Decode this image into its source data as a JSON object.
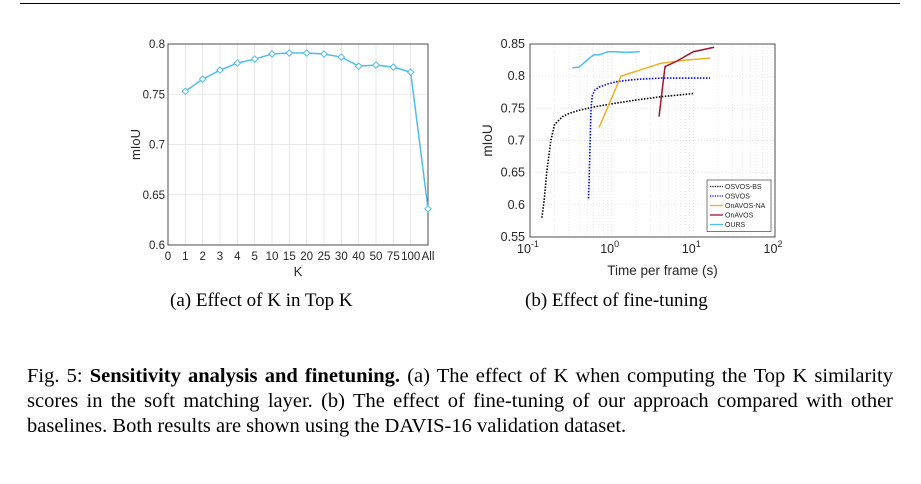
{
  "chart_data": [
    {
      "type": "line",
      "xlabel": "K",
      "ylabel": "mIoU",
      "categories": [
        "0",
        "1",
        "2",
        "3",
        "4",
        "5",
        "10",
        "15",
        "20",
        "25",
        "30",
        "40",
        "50",
        "75",
        "100",
        "All"
      ],
      "yticks": [
        "0.6",
        "0.65",
        "0.7",
        "0.75",
        "0.8"
      ],
      "ylim": [
        0.6,
        0.8
      ],
      "grid": true,
      "series": [
        {
          "color": "#4dbeee",
          "marker": "diamond",
          "values": [
            null,
            0.753,
            0.765,
            0.774,
            0.781,
            0.785,
            0.79,
            0.791,
            0.791,
            0.79,
            0.787,
            0.778,
            0.779,
            0.777,
            0.772,
            0.636
          ]
        }
      ]
    },
    {
      "type": "line",
      "xscale": "log",
      "xlabel": "Time per frame (s)",
      "ylabel": "mIoU",
      "xlim": [
        0.1,
        100
      ],
      "ylim": [
        0.55,
        0.85
      ],
      "xticks": [
        {
          "base": "10",
          "exp": "-1"
        },
        {
          "base": "10",
          "exp": "0"
        },
        {
          "base": "10",
          "exp": "1"
        },
        {
          "base": "10",
          "exp": "2"
        }
      ],
      "yticks": [
        "0.55",
        "0.6",
        "0.65",
        "0.7",
        "0.75",
        "0.8",
        "0.85"
      ],
      "grid": true,
      "legend_position": "bottom-right",
      "series": [
        {
          "name": "OSVOS-BS",
          "color": "#000000",
          "dash": "dotted",
          "x": [
            0.14,
            0.15,
            0.16,
            0.18,
            0.2,
            0.25,
            0.3,
            0.4,
            0.6,
            1.0,
            2.0,
            4.0,
            7.0,
            10.0
          ],
          "y": [
            0.58,
            0.61,
            0.65,
            0.7,
            0.725,
            0.737,
            0.742,
            0.747,
            0.752,
            0.757,
            0.763,
            0.768,
            0.771,
            0.773
          ]
        },
        {
          "name": "OSVOS",
          "color": "#0000ff",
          "dash": "dotted",
          "x": [
            0.52,
            0.53,
            0.54,
            0.55,
            0.56,
            0.58,
            0.62,
            0.7,
            0.9,
            1.2,
            2.0,
            4.0,
            8.0,
            16.0
          ],
          "y": [
            0.61,
            0.64,
            0.68,
            0.72,
            0.752,
            0.77,
            0.778,
            0.783,
            0.788,
            0.792,
            0.795,
            0.797,
            0.797,
            0.797
          ]
        },
        {
          "name": "OnAVOS-NA",
          "color": "#edb120",
          "x": [
            0.7,
            1.3,
            4.0,
            8.0,
            16.0
          ],
          "y": [
            0.72,
            0.8,
            0.82,
            0.825,
            0.828
          ]
        },
        {
          "name": "OnAVOS",
          "color": "#a2142f",
          "x": [
            3.8,
            4.5,
            6.0,
            10.0,
            18.0
          ],
          "y": [
            0.737,
            0.815,
            0.822,
            0.838,
            0.845
          ]
        },
        {
          "name": "OURS",
          "color": "#4dbeee",
          "x": [
            0.33,
            0.4,
            0.5,
            0.6,
            0.7,
            0.9,
            1.1,
            1.5,
            2.2
          ],
          "y": [
            0.813,
            0.814,
            0.825,
            0.833,
            0.833,
            0.838,
            0.838,
            0.837,
            0.838
          ]
        }
      ]
    }
  ],
  "captions": {
    "a": "(a) Effect of K in Top K",
    "b": "(b) Effect of fine-tuning",
    "fig_label": "Fig. 5: ",
    "fig_title": "Sensitivity analysis and finetuning.",
    "fig_body": " (a) The effect of K when computing the Top K similarity scores in the soft matching layer. (b) The effect of fine-tuning of our approach compared with other baselines. Both results are shown using the DAVIS-16 validation dataset."
  }
}
